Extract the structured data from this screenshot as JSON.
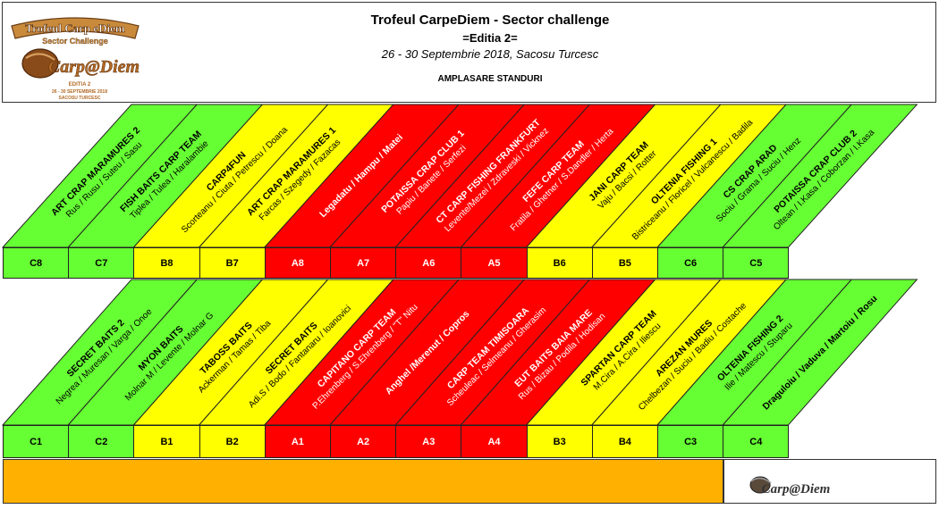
{
  "header": {
    "title": "Trofeul CarpeDiem - Sector challenge",
    "edition": "=Editia 2=",
    "date_place": "26 - 30 Septembrie 2018, Sacosu Turcesc",
    "subtitle": "AMPLASARE STANDURI"
  },
  "logo": {
    "ribbon_text": "Trofeul Carp eDiem",
    "ribbon_sub": "Sector Challenge",
    "script_text": "Carp@Diem",
    "edition_text": "EDITIA 2",
    "date_text": "26 - 30 SEPTEMBRIE 2018",
    "place_text": "SACOSU TURCESC"
  },
  "footer_logo": {
    "script_text": "Carp@Diem"
  },
  "colors": {
    "green": "#66ff33",
    "yellow": "#ffff00",
    "red": "#ff0000",
    "orange": "#ffb000",
    "border": "#222222"
  },
  "top_row": [
    {
      "stand": "C8",
      "color": "green",
      "team": "ART CRAP MARAMURES 2",
      "names": "Rus / Rusu / Suteu / Sasu"
    },
    {
      "stand": "C7",
      "color": "green",
      "team": "FISH BAITS CARP TEAM",
      "names": "Tiplea / Tulea / Haralambie"
    },
    {
      "stand": "B8",
      "color": "yellow",
      "team": "CARP4FUN",
      "names": "Scorteanu / Ciuta / Petrescu / Doana"
    },
    {
      "stand": "B7",
      "color": "yellow",
      "team": "ART CRAP MARAMURES 1",
      "names": "Farcas / Szegedy / Fazacas"
    },
    {
      "stand": "A8",
      "color": "red",
      "team": "Legadatu / Hampu / Matei",
      "names": ""
    },
    {
      "stand": "A7",
      "color": "red",
      "team": "POTAISSA CRAP CLUB 1",
      "names": "Papiu / Banete / Serfezi"
    },
    {
      "stand": "A6",
      "color": "red",
      "team": "CT CARP FISHING FRANKFURT",
      "names": "Levente/Mezei / Zdraveski / Vicknez"
    },
    {
      "stand": "A5",
      "color": "red",
      "team": "FEFE CARP TEAM",
      "names": "Fratila / Ghetner / S.Dandler / Herta"
    },
    {
      "stand": "B6",
      "color": "yellow",
      "team": "JANI CARP TEAM",
      "names": "Vaju / Bacsi / Rotter"
    },
    {
      "stand": "B5",
      "color": "yellow",
      "team": "OLTENIA FISHING 1",
      "names": "Bistriceanu / Floricel / Vulcanescu / Badila"
    },
    {
      "stand": "C6",
      "color": "green",
      "team": "CS CRAP ARAD",
      "names": "Sociu / Grama / Suciu / Henz"
    },
    {
      "stand": "C5",
      "color": "green",
      "team": "POTAISSA CRAP CLUB 2",
      "names": "Oltean / I.Kasa / Coborzan / I.Kasa"
    }
  ],
  "bottom_row": [
    {
      "stand": "C1",
      "color": "green",
      "team": "SECRET BAITS 2",
      "names": "Negrea / Muresan / Varga / Onoe"
    },
    {
      "stand": "C2",
      "color": "green",
      "team": "MYON BAITS",
      "names": "Molnar M / Levente / Molnar G"
    },
    {
      "stand": "B1",
      "color": "yellow",
      "team": "TABOSS BAITS",
      "names": "Ackerman / Tamas / Tiba"
    },
    {
      "stand": "B2",
      "color": "yellow",
      "team": "SECRET BAITS",
      "names": "Adi.S / Bodo / Fantanaru / Ioanovici"
    },
    {
      "stand": "A1",
      "color": "red",
      "team": "CAPITANO CARP TEAM",
      "names": "P.Ehrenberg / S.Ehrenberg / \"T\" Nitu"
    },
    {
      "stand": "A2",
      "color": "red",
      "team": "Anghel /Merenut / Copros",
      "names": ""
    },
    {
      "stand": "A3",
      "color": "red",
      "team": "CARP TEAM TIMISOARA",
      "names": "Scheuleac / Selmeanu / Gherasim"
    },
    {
      "stand": "A4",
      "color": "red",
      "team": "EUT BAITS BAIA MARE",
      "names": "Rus / Bizau / Podila / Hodisan"
    },
    {
      "stand": "B3",
      "color": "yellow",
      "team": "SPARTAN CARP TEAM",
      "names": "M.Cira / A.Cira / Iliescu"
    },
    {
      "stand": "B4",
      "color": "yellow",
      "team": "AREZAN MURES",
      "names": "Chelbezan / Suciu / Badiu / Costache"
    },
    {
      "stand": "C3",
      "color": "green",
      "team": "OLTENIA FISHING 2",
      "names": "Ilie / Matescu / Stuparu"
    },
    {
      "stand": "C4",
      "color": "green",
      "team": "Draguloiu / Vaduva / Martoiu / Rosu",
      "names": ""
    }
  ]
}
